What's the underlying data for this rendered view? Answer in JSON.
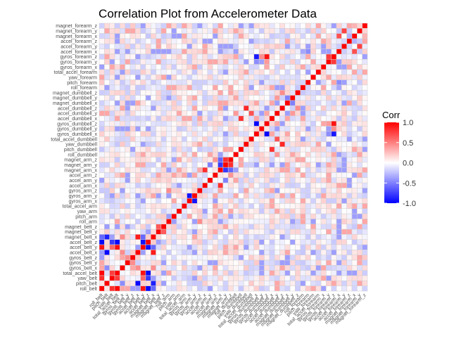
{
  "chart_data": {
    "type": "heatmap",
    "title": "Correlation Plot from Accelerometer Data",
    "xlabel": "",
    "ylabel": "",
    "variables": [
      "roll_belt",
      "pitch_belt",
      "yaw_belt",
      "total_accel_belt",
      "gyros_belt_x",
      "gyros_belt_y",
      "gyros_belt_z",
      "accel_belt_x",
      "accel_belt_y",
      "accel_belt_z",
      "magnet_belt_x",
      "magnet_belt_y",
      "magnet_belt_z",
      "roll_arm",
      "pitch_arm",
      "yaw_arm",
      "total_accel_arm",
      "gyros_arm_x",
      "gyros_arm_y",
      "gyros_arm_z",
      "accel_arm_x",
      "accel_arm_y",
      "accel_arm_z",
      "magnet_arm_x",
      "magnet_arm_y",
      "magnet_arm_z",
      "roll_dumbbell",
      "pitch_dumbbell",
      "yaw_dumbbell",
      "total_accel_dumbbell",
      "gyros_dumbbell_x",
      "gyros_dumbbell_y",
      "gyros_dumbbell_z",
      "accel_dumbbell_x",
      "accel_dumbbell_y",
      "accel_dumbbell_z",
      "magnet_dumbbell_x",
      "magnet_dumbbell_y",
      "magnet_dumbbell_z",
      "roll_forearm",
      "pitch_forearm",
      "yaw_forearm",
      "total_accel_forearm",
      "gyros_forearm_x",
      "gyros_forearm_y",
      "gyros_forearm_z",
      "accel_forearm_x",
      "accel_forearm_y",
      "accel_forearm_z",
      "magnet_forearm_x",
      "magnet_forearm_y",
      "magnet_forearm_z"
    ],
    "strong_correlations": [
      {
        "a": "roll_belt",
        "b": "yaw_belt",
        "r": 0.82
      },
      {
        "a": "roll_belt",
        "b": "total_accel_belt",
        "r": 0.98
      },
      {
        "a": "roll_belt",
        "b": "accel_belt_y",
        "r": 0.92
      },
      {
        "a": "roll_belt",
        "b": "accel_belt_z",
        "r": -0.99
      },
      {
        "a": "roll_belt",
        "b": "magnet_belt_x",
        "r": -0.6
      },
      {
        "a": "pitch_belt",
        "b": "accel_belt_x",
        "r": -0.97
      },
      {
        "a": "pitch_belt",
        "b": "magnet_belt_x",
        "r": -0.88
      },
      {
        "a": "pitch_belt",
        "b": "gyros_belt_x",
        "r": -0.45
      },
      {
        "a": "yaw_belt",
        "b": "total_accel_belt",
        "r": 0.76
      },
      {
        "a": "yaw_belt",
        "b": "accel_belt_z",
        "r": -0.78
      },
      {
        "a": "yaw_belt",
        "b": "accel_belt_y",
        "r": 0.6
      },
      {
        "a": "total_accel_belt",
        "b": "accel_belt_y",
        "r": 0.93
      },
      {
        "a": "total_accel_belt",
        "b": "accel_belt_z",
        "r": -0.97
      },
      {
        "a": "gyros_belt_x",
        "b": "gyros_belt_z",
        "r": 0.35
      },
      {
        "a": "gyros_belt_x",
        "b": "accel_belt_x",
        "r": 0.45
      },
      {
        "a": "gyros_belt_x",
        "b": "magnet_belt_x",
        "r": 0.45
      },
      {
        "a": "gyros_belt_y",
        "b": "gyros_belt_z",
        "r": 0.45
      },
      {
        "a": "accel_belt_x",
        "b": "magnet_belt_x",
        "r": 0.89
      },
      {
        "a": "accel_belt_y",
        "b": "accel_belt_z",
        "r": -0.93
      },
      {
        "a": "accel_belt_y",
        "b": "magnet_belt_x",
        "r": -0.6
      },
      {
        "a": "magnet_belt_y",
        "b": "magnet_belt_z",
        "r": 0.65
      },
      {
        "a": "gyros_arm_x",
        "b": "gyros_arm_y",
        "r": -0.92
      },
      {
        "a": "accel_arm_x",
        "b": "magnet_arm_x",
        "r": 0.81
      },
      {
        "a": "accel_arm_y",
        "b": "magnet_arm_y",
        "r": -0.5
      },
      {
        "a": "accel_arm_z",
        "b": "magnet_arm_z",
        "r": 0.42
      },
      {
        "a": "magnet_arm_x",
        "b": "magnet_arm_y",
        "r": -0.78
      },
      {
        "a": "magnet_arm_x",
        "b": "magnet_arm_z",
        "r": -0.6
      },
      {
        "a": "magnet_arm_y",
        "b": "magnet_arm_z",
        "r": 0.81
      },
      {
        "a": "roll_arm",
        "b": "gyros_arm_z",
        "r": 0.45
      },
      {
        "a": "pitch_arm",
        "b": "magnet_arm_z",
        "r": -0.35
      },
      {
        "a": "roll_dumbbell",
        "b": "accel_dumbbell_y",
        "r": 0.4
      },
      {
        "a": "pitch_dumbbell",
        "b": "accel_dumbbell_x",
        "r": 0.81
      },
      {
        "a": "yaw_dumbbell",
        "b": "accel_dumbbell_z",
        "r": 0.85
      },
      {
        "a": "total_accel_dumbbell",
        "b": "accel_dumbbell_y",
        "r": 0.68
      },
      {
        "a": "gyros_dumbbell_x",
        "b": "gyros_dumbbell_z",
        "r": -0.98
      },
      {
        "a": "gyros_dumbbell_x",
        "b": "gyros_forearm_z",
        "r": -0.9
      },
      {
        "a": "gyros_dumbbell_z",
        "b": "gyros_forearm_z",
        "r": 0.93
      },
      {
        "a": "gyros_dumbbell_y",
        "b": "gyros_forearm_z",
        "r": 0.45
      },
      {
        "a": "gyros_dumbbell_x",
        "b": "gyros_forearm_y",
        "r": -0.45
      },
      {
        "a": "gyros_dumbbell_z",
        "b": "gyros_forearm_y",
        "r": 0.4
      },
      {
        "a": "accel_dumbbell_x",
        "b": "magnet_dumbbell_x",
        "r": 0.35
      },
      {
        "a": "accel_dumbbell_y",
        "b": "magnet_dumbbell_y",
        "r": 0.4
      },
      {
        "a": "accel_dumbbell_z",
        "b": "magnet_dumbbell_z",
        "r": 0.45
      },
      {
        "a": "magnet_dumbbell_x",
        "b": "magnet_dumbbell_y",
        "r": -0.5
      },
      {
        "a": "gyros_forearm_y",
        "b": "gyros_forearm_z",
        "r": 0.77
      },
      {
        "a": "roll_forearm",
        "b": "accel_forearm_x",
        "r": -0.35
      },
      {
        "a": "pitch_forearm",
        "b": "accel_forearm_x",
        "r": -0.45
      },
      {
        "a": "accel_forearm_x",
        "b": "magnet_forearm_x",
        "r": 0.69
      },
      {
        "a": "accel_forearm_y",
        "b": "magnet_forearm_y",
        "r": 0.74
      },
      {
        "a": "accel_forearm_z",
        "b": "magnet_forearm_z",
        "r": 0.35
      },
      {
        "a": "accel_forearm_z",
        "b": "magnet_forearm_x",
        "r": -0.3
      },
      {
        "a": "magnet_forearm_x",
        "b": "magnet_forearm_z",
        "r": 0.3
      }
    ],
    "color_scale": {
      "low": "#0000ff",
      "mid": "#ffffff",
      "high": "#ff0000",
      "limits": [
        -1,
        1
      ]
    },
    "legend": {
      "title": "Corr",
      "position": "right",
      "ticks": [
        1,
        0.5,
        0,
        -0.5,
        -1
      ],
      "tick_labels": [
        "1.0",
        "0.5",
        "0.0",
        "-0.5",
        "-1.0"
      ]
    },
    "grid_line_color": "#d0d0d0"
  }
}
